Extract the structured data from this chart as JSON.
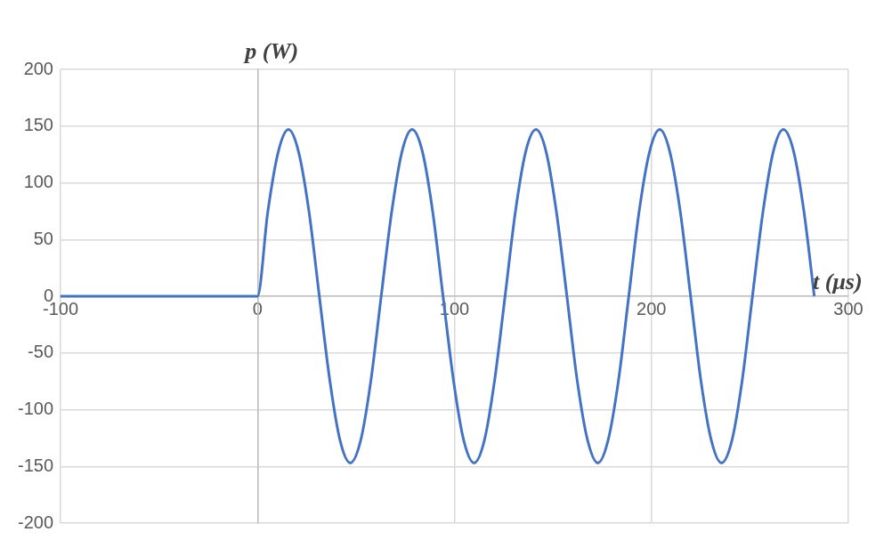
{
  "chart_data": {
    "type": "line",
    "xlabel": "t (μs)",
    "ylabel": "p (W)",
    "xlim": [
      -100,
      300
    ],
    "xticks": [
      -100,
      0,
      100,
      200,
      300
    ],
    "ylim": [
      -200,
      200
    ],
    "yticks": [
      -200,
      -150,
      -100,
      -50,
      0,
      50,
      100,
      150,
      200
    ],
    "grid": true,
    "legend": false,
    "marker": "none",
    "line_style": "solid",
    "series": [
      {
        "color": "#4472c4",
        "x": [
          -100,
          0,
          5.2,
          10.5,
          15.7,
          20.9,
          26.2,
          31.4,
          36.7,
          41.9,
          47.1,
          52.4,
          57.6,
          62.8,
          68.1,
          73.3,
          78.5,
          83.8,
          89.0,
          94.2,
          99.5,
          104.7,
          110.0,
          115.2,
          120.4,
          125.7,
          130.9,
          136.1,
          141.4,
          146.6,
          151.8,
          157.1,
          162.3,
          167.6,
          172.8,
          178.0,
          183.3,
          188.5,
          193.7,
          199.0,
          204.2,
          209.4,
          214.7,
          219.9,
          225.1,
          230.4,
          235.6,
          240.9,
          246.1,
          251.3,
          256.6,
          261.8,
          267.0,
          272.3,
          277.5,
          282.7
        ],
        "values": [
          0,
          0,
          74,
          127,
          147,
          127,
          74,
          0,
          -74,
          -127,
          -147,
          -127,
          -74,
          0,
          74,
          127,
          147,
          127,
          74,
          0,
          -74,
          -127,
          -147,
          -127,
          -74,
          0,
          74,
          127,
          147,
          127,
          74,
          0,
          -74,
          -127,
          -147,
          -127,
          -74,
          0,
          74,
          127,
          147,
          127,
          74,
          0,
          -74,
          -127,
          -147,
          -127,
          -74,
          0,
          74,
          127,
          147,
          127,
          74,
          0
        ]
      }
    ]
  }
}
